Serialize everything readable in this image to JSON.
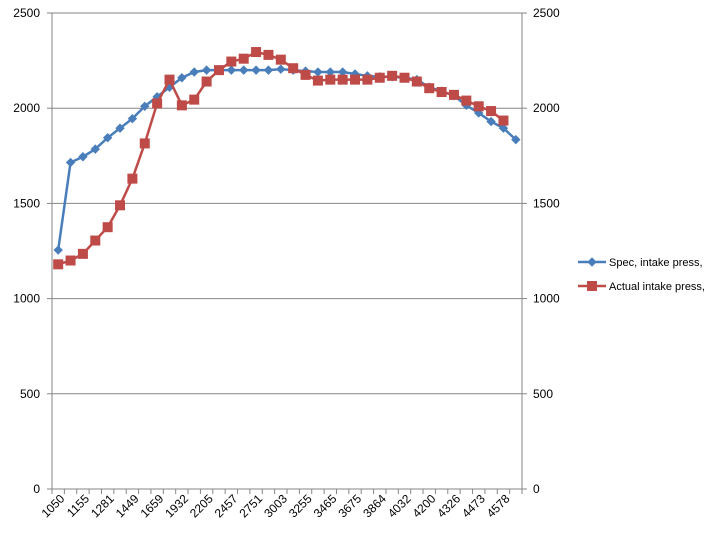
{
  "chart_data": {
    "type": "line",
    "title": "",
    "xlabel": "",
    "ylabel": "",
    "ylim": [
      0,
      2500
    ],
    "y_ticks": [
      0,
      500,
      1000,
      1500,
      2000,
      2500
    ],
    "y_tick_labels": [
      "0",
      "500",
      "1000",
      "1500",
      "2000",
      "2500"
    ],
    "secondary_y_axis": true,
    "grid": "horizontal",
    "legend_position": "right",
    "x_tick_labels": [
      "1050",
      "1155",
      "1281",
      "1449",
      "1659",
      "1932",
      "2205",
      "2457",
      "2751",
      "3003",
      "3255",
      "3465",
      "3675",
      "3864",
      "4032",
      "4200",
      "4326",
      "4473",
      "4578"
    ],
    "series": [
      {
        "name": "Spec, intake press,",
        "color": "#4A7EBB",
        "marker": "diamond",
        "values": [
          1255,
          1715,
          1745,
          1785,
          1845,
          1895,
          1945,
          2010,
          2060,
          2110,
          2160,
          2190,
          2200,
          2200,
          2200,
          2200,
          2200,
          2200,
          2205,
          2200,
          2195,
          2190,
          2190,
          2190,
          2180,
          2170,
          2165,
          2165,
          2160,
          2150,
          2110,
          2090,
          2065,
          2015,
          1975,
          1930,
          1895,
          1835
        ]
      },
      {
        "name": "Actual intake press,",
        "color": "#BE4B48",
        "marker": "square",
        "values": [
          1180,
          1200,
          1235,
          1305,
          1375,
          1490,
          1630,
          1815,
          2025,
          2150,
          2015,
          2045,
          2140,
          2200,
          2245,
          2260,
          2295,
          2280,
          2255,
          2210,
          2175,
          2145,
          2150,
          2150,
          2150,
          2150,
          2160,
          2170,
          2160,
          2140,
          2105,
          2085,
          2070,
          2040,
          2010,
          1985,
          1935
        ]
      }
    ]
  }
}
